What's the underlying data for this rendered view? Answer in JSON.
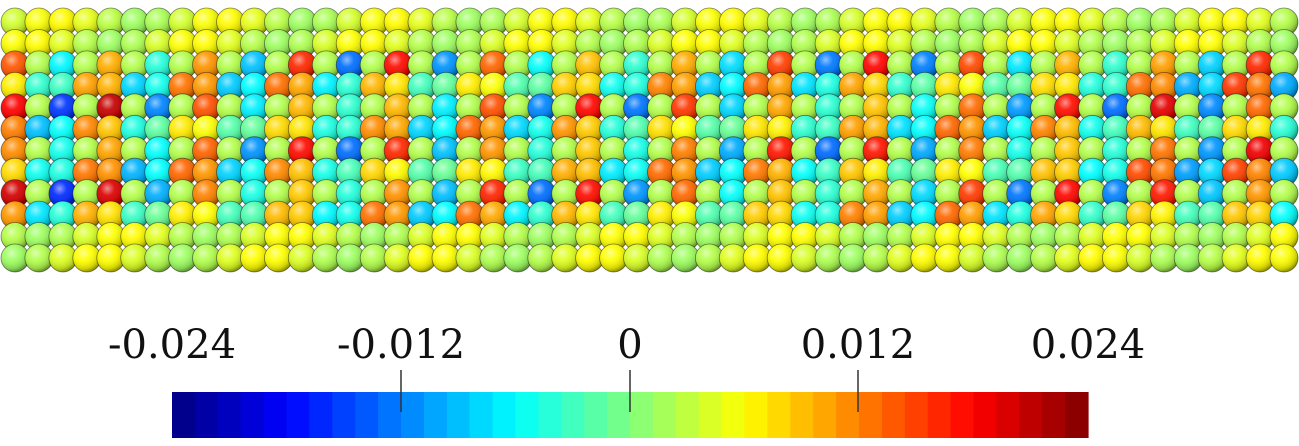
{
  "colorbar": {
    "tick_labels": [
      "-0.024",
      "-0.012",
      "0",
      "0.012",
      "0.024"
    ],
    "tick_values": [
      -0.024,
      -0.012,
      0,
      0.012,
      0.024
    ],
    "range": [
      -0.03,
      0.03
    ],
    "colormap": "jet",
    "bands": 40
  },
  "colors": {
    "background": "#ffffff",
    "tick_line": "#333333"
  }
}
